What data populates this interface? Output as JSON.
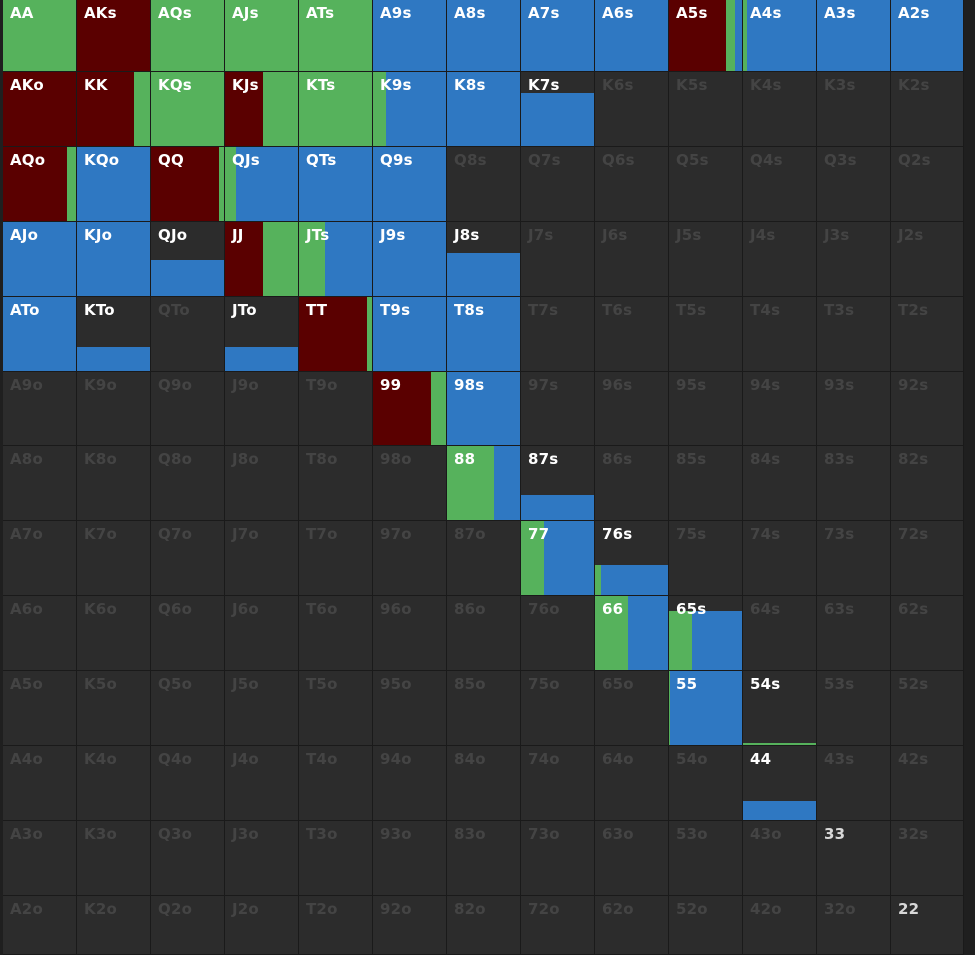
{
  "colors": {
    "raise": "#5a0000",
    "call": "#56b25c",
    "fold": "#2f78c2",
    "empty": "#2c2c2c",
    "label_active": "#ffffff",
    "label_muted": "#444444"
  },
  "ranks": [
    "A",
    "K",
    "Q",
    "J",
    "T",
    "9",
    "8",
    "7",
    "6",
    "5",
    "4",
    "3",
    "2"
  ],
  "hands": [
    [
      "AA",
      "AKs",
      "AQs",
      "AJs",
      "ATs",
      "A9s",
      "A8s",
      "A7s",
      "A6s",
      "A5s",
      "A4s",
      "A3s",
      "A2s"
    ],
    [
      "AKo",
      "KK",
      "KQs",
      "KJs",
      "KTs",
      "K9s",
      "K8s",
      "K7s",
      "K6s",
      "K5s",
      "K4s",
      "K3s",
      "K2s"
    ],
    [
      "AQo",
      "KQo",
      "QQ",
      "QJs",
      "QTs",
      "Q9s",
      "Q8s",
      "Q7s",
      "Q6s",
      "Q5s",
      "Q4s",
      "Q3s",
      "Q2s"
    ],
    [
      "AJo",
      "KJo",
      "QJo",
      "JJ",
      "JTs",
      "J9s",
      "J8s",
      "J7s",
      "J6s",
      "J5s",
      "J4s",
      "J3s",
      "J2s"
    ],
    [
      "ATo",
      "KTo",
      "QTo",
      "JTo",
      "TT",
      "T9s",
      "T8s",
      "T7s",
      "T6s",
      "T5s",
      "T4s",
      "T3s",
      "T2s"
    ],
    [
      "A9o",
      "K9o",
      "Q9o",
      "J9o",
      "T9o",
      "99",
      "98s",
      "97s",
      "96s",
      "95s",
      "94s",
      "93s",
      "92s"
    ],
    [
      "A8o",
      "K8o",
      "Q8o",
      "J8o",
      "T8o",
      "98o",
      "88",
      "87s",
      "86s",
      "85s",
      "84s",
      "83s",
      "82s"
    ],
    [
      "A7o",
      "K7o",
      "Q7o",
      "J7o",
      "T7o",
      "97o",
      "87o",
      "77",
      "76s",
      "75s",
      "74s",
      "73s",
      "72s"
    ],
    [
      "A6o",
      "K6o",
      "Q6o",
      "J6o",
      "T6o",
      "96o",
      "86o",
      "76o",
      "66",
      "65s",
      "64s",
      "63s",
      "62s"
    ],
    [
      "A5o",
      "K5o",
      "Q5o",
      "J5o",
      "T5o",
      "95o",
      "85o",
      "75o",
      "65o",
      "55",
      "54s",
      "53s",
      "52s"
    ],
    [
      "A4o",
      "K4o",
      "Q4o",
      "J4o",
      "T4o",
      "94o",
      "84o",
      "74o",
      "64o",
      "54o",
      "44",
      "43s",
      "42s"
    ],
    [
      "A3o",
      "K3o",
      "Q3o",
      "J3o",
      "T3o",
      "93o",
      "83o",
      "73o",
      "63o",
      "53o",
      "43o",
      "33",
      "32s"
    ],
    [
      "A2o",
      "K2o",
      "Q2o",
      "J2o",
      "T2o",
      "92o",
      "82o",
      "72o",
      "62o",
      "52o",
      "42o",
      "32o",
      "22"
    ]
  ],
  "strategy": {
    "AA": {
      "freq": 1.0,
      "raise": 0.0,
      "call": 1.0,
      "fold": 0.0
    },
    "AKs": {
      "freq": 1.0,
      "raise": 1.0,
      "call": 0.0,
      "fold": 0.0
    },
    "AQs": {
      "freq": 1.0,
      "raise": 0.0,
      "call": 1.0,
      "fold": 0.0
    },
    "AJs": {
      "freq": 1.0,
      "raise": 0.0,
      "call": 1.0,
      "fold": 0.0
    },
    "ATs": {
      "freq": 1.0,
      "raise": 0.0,
      "call": 1.0,
      "fold": 0.0
    },
    "A9s": {
      "freq": 1.0,
      "raise": 0.0,
      "call": 0.0,
      "fold": 1.0
    },
    "A8s": {
      "freq": 1.0,
      "raise": 0.0,
      "call": 0.0,
      "fold": 1.0
    },
    "A7s": {
      "freq": 1.0,
      "raise": 0.0,
      "call": 0.0,
      "fold": 1.0
    },
    "A6s": {
      "freq": 1.0,
      "raise": 0.0,
      "call": 0.0,
      "fold": 1.0
    },
    "A5s": {
      "freq": 1.0,
      "raise": 0.78,
      "call": 0.12,
      "fold": 0.1
    },
    "A4s": {
      "freq": 1.0,
      "raise": 0.0,
      "call": 0.05,
      "fold": 0.95
    },
    "A3s": {
      "freq": 1.0,
      "raise": 0.0,
      "call": 0.0,
      "fold": 1.0
    },
    "A2s": {
      "freq": 1.0,
      "raise": 0.0,
      "call": 0.0,
      "fold": 1.0
    },
    "AKo": {
      "freq": 1.0,
      "raise": 1.0,
      "call": 0.0,
      "fold": 0.0
    },
    "KK": {
      "freq": 1.0,
      "raise": 0.78,
      "call": 0.22,
      "fold": 0.0
    },
    "KQs": {
      "freq": 1.0,
      "raise": 0.0,
      "call": 1.0,
      "fold": 0.0
    },
    "KJs": {
      "freq": 1.0,
      "raise": 0.52,
      "call": 0.48,
      "fold": 0.0
    },
    "KTs": {
      "freq": 1.0,
      "raise": 0.0,
      "call": 1.0,
      "fold": 0.0
    },
    "K9s": {
      "freq": 1.0,
      "raise": 0.0,
      "call": 0.18,
      "fold": 0.82
    },
    "K8s": {
      "freq": 1.0,
      "raise": 0.0,
      "call": 0.0,
      "fold": 1.0
    },
    "K7s": {
      "freq": 0.72,
      "raise": 0.0,
      "call": 0.0,
      "fold": 1.0
    },
    "AQo": {
      "freq": 1.0,
      "raise": 0.88,
      "call": 0.12,
      "fold": 0.0
    },
    "KQo": {
      "freq": 1.0,
      "raise": 0.0,
      "call": 0.0,
      "fold": 1.0
    },
    "QQ": {
      "freq": 1.0,
      "raise": 0.93,
      "call": 0.07,
      "fold": 0.0
    },
    "QJs": {
      "freq": 1.0,
      "raise": 0.0,
      "call": 0.15,
      "fold": 0.85
    },
    "QTs": {
      "freq": 1.0,
      "raise": 0.0,
      "call": 0.0,
      "fold": 1.0
    },
    "Q9s": {
      "freq": 1.0,
      "raise": 0.0,
      "call": 0.0,
      "fold": 1.0
    },
    "AJo": {
      "freq": 1.0,
      "raise": 0.0,
      "call": 0.0,
      "fold": 1.0
    },
    "KJo": {
      "freq": 1.0,
      "raise": 0.0,
      "call": 0.0,
      "fold": 1.0
    },
    "QJo": {
      "freq": 0.49,
      "raise": 0.0,
      "call": 0.0,
      "fold": 1.0
    },
    "JJ": {
      "freq": 1.0,
      "raise": 0.52,
      "call": 0.48,
      "fold": 0.0
    },
    "JTs": {
      "freq": 1.0,
      "raise": 0.0,
      "call": 0.35,
      "fold": 0.65
    },
    "J9s": {
      "freq": 1.0,
      "raise": 0.0,
      "call": 0.0,
      "fold": 1.0
    },
    "J8s": {
      "freq": 0.58,
      "raise": 0.0,
      "call": 0.0,
      "fold": 1.0
    },
    "ATo": {
      "freq": 1.0,
      "raise": 0.0,
      "call": 0.0,
      "fold": 1.0
    },
    "KTo": {
      "freq": 0.32,
      "raise": 0.0,
      "call": 0.0,
      "fold": 1.0
    },
    "JTo": {
      "freq": 0.33,
      "raise": 0.0,
      "call": 0.0,
      "fold": 1.0
    },
    "TT": {
      "freq": 1.0,
      "raise": 0.93,
      "call": 0.07,
      "fold": 0.0
    },
    "T9s": {
      "freq": 1.0,
      "raise": 0.0,
      "call": 0.0,
      "fold": 1.0
    },
    "T8s": {
      "freq": 1.0,
      "raise": 0.0,
      "call": 0.0,
      "fold": 1.0
    },
    "99": {
      "freq": 1.0,
      "raise": 0.8,
      "call": 0.2,
      "fold": 0.0
    },
    "98s": {
      "freq": 1.0,
      "raise": 0.0,
      "call": 0.0,
      "fold": 1.0
    },
    "88": {
      "freq": 1.0,
      "raise": 0.0,
      "call": 0.65,
      "fold": 0.35
    },
    "87s": {
      "freq": 0.34,
      "raise": 0.0,
      "call": 0.0,
      "fold": 1.0
    },
    "77": {
      "freq": 1.0,
      "raise": 0.0,
      "call": 0.31,
      "fold": 0.69
    },
    "76s": {
      "freq": 0.4,
      "raise": 0.0,
      "call": 0.08,
      "fold": 0.92
    },
    "66": {
      "freq": 1.0,
      "raise": 0.0,
      "call": 0.45,
      "fold": 0.55
    },
    "65s": {
      "freq": 0.8,
      "raise": 0.0,
      "call": 0.31,
      "fold": 0.69
    },
    "55": {
      "freq": 1.0,
      "raise": 0.0,
      "call": 0.01,
      "fold": 0.99
    },
    "54s": {
      "freq": 0.01,
      "raise": 0.0,
      "call": 1.0,
      "fold": 0.0
    },
    "44": {
      "freq": 0.25,
      "raise": 0.0,
      "call": 0.0,
      "fold": 1.0
    },
    "33": {
      "freq": 0.0,
      "raise": 0.0,
      "call": 0.0,
      "fold": 0.0,
      "highlight": true
    },
    "22": {
      "freq": 0.0,
      "raise": 0.0,
      "call": 0.0,
      "fold": 0.0,
      "highlight": true
    }
  }
}
